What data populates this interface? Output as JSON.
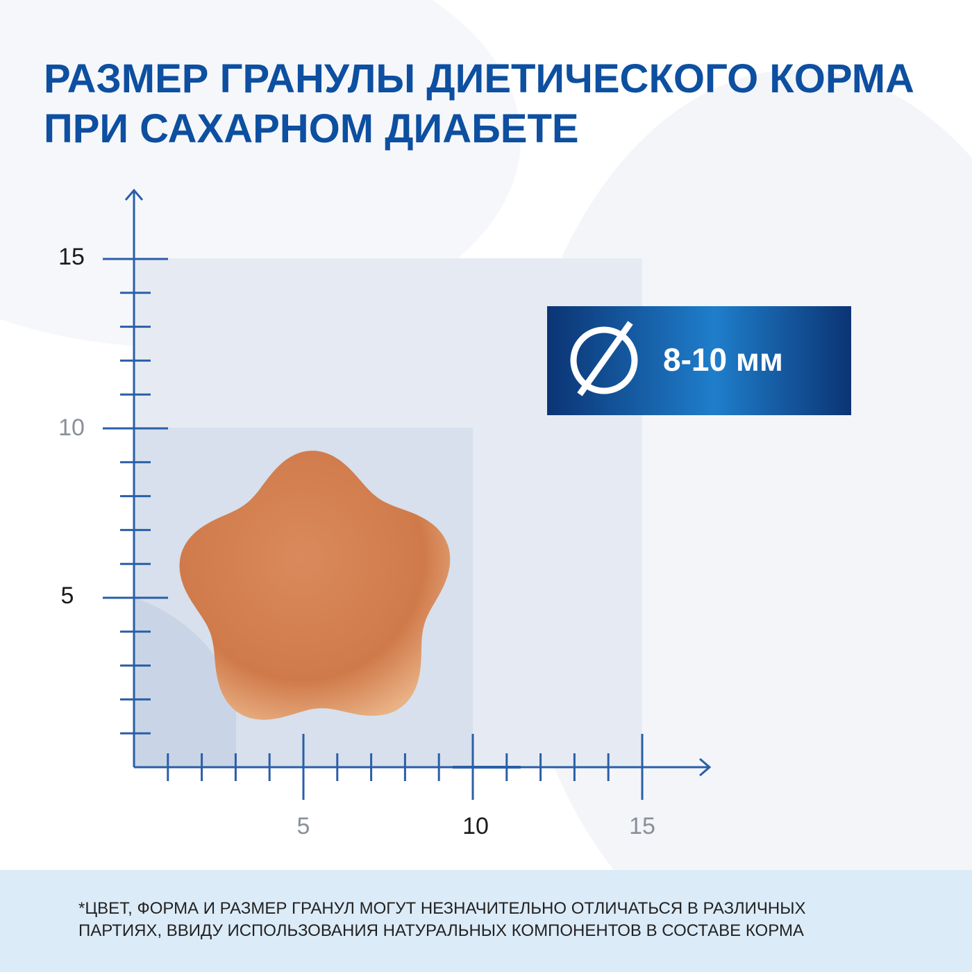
{
  "title": [
    "РАЗМЕР ГРАНУЛЫ ДИЕТИЧЕСКОГО КОРМА",
    "ПРИ САХАРНОМ ДИАБЕТЕ"
  ],
  "badge": {
    "label": "8-10 мм"
  },
  "scale": {
    "y_labels": [
      "15",
      "10",
      "5"
    ],
    "x_labels": [
      "5",
      "10",
      "15"
    ]
  },
  "footnote": [
    "*ЦВЕТ, ФОРМА И РАЗМЕР ГРАНУЛ МОГУТ НЕЗНАЧИТЕЛЬНО ОТЛИЧАТЬСЯ  В РАЗЛИЧНЫХ",
    "ПАРТИЯХ, ВВИДУ ИСПОЛЬЗОВАНИЯ НАТУРАЛЬНЫХ КОМПОНЕНТОВ В СОСТАВЕ  КОРМА"
  ]
}
